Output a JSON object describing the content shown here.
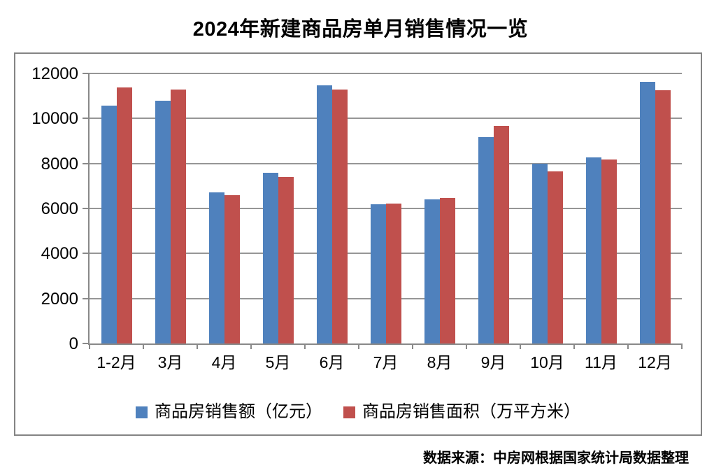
{
  "title": "2024年新建商品房单月销售情况一览",
  "source": "数据来源：中房网根据国家统计局数据整理",
  "colors": {
    "series_blue": "#4F81BD",
    "series_red": "#C0504D",
    "gridline": "#969696",
    "axis": "#898989",
    "frame_border": "#848484"
  },
  "legend": {
    "items": [
      {
        "label": "商品房销售额（亿元）",
        "color": "#4F81BD"
      },
      {
        "label": "商品房销售面积（万平方米）",
        "color": "#C0504D"
      }
    ]
  },
  "chart_data": {
    "type": "bar",
    "title": "2024年新建商品房单月销售情况一览",
    "categories": [
      "1-2月",
      "3月",
      "4月",
      "5月",
      "6月",
      "7月",
      "8月",
      "9月",
      "10月",
      "11月",
      "12月"
    ],
    "series": [
      {
        "name": "商品房销售额（亿元）",
        "color": "#4F81BD",
        "values": [
          10566,
          10789,
          6712,
          7598,
          11468,
          6197,
          6393,
          9157,
          7975,
          8270,
          11625
        ]
      },
      {
        "name": "商品房销售面积（万平方米）",
        "color": "#C0504D",
        "values": [
          11369,
          11299,
          6584,
          7390,
          11274,
          6233,
          6453,
          9682,
          7646,
          8188,
          11267
        ]
      }
    ],
    "xlabel": "",
    "ylabel": "",
    "ylim": [
      0,
      12000
    ],
    "yticks": [
      0,
      2000,
      4000,
      6000,
      8000,
      10000,
      12000
    ],
    "grid": true,
    "legend_position": "bottom",
    "annotation": "数据来源：中房网根据国家统计局数据整理"
  }
}
